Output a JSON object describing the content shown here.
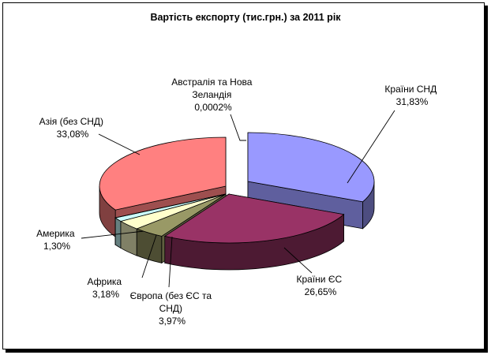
{
  "chart_data": {
    "type": "pie",
    "style": "3d-exploded",
    "title": "Вартість експорту (тис.грн.) за 2011 рік",
    "legend": "none",
    "slices": [
      {
        "label": "Країни СНД",
        "value": 31.83,
        "value_text": "31,83%",
        "color": "#9999ff"
      },
      {
        "label": "Країни ЄС",
        "value": 26.65,
        "value_text": "26,65%",
        "color": "#993366"
      },
      {
        "label": "Європа (без ЄС та СНД)",
        "value": 3.97,
        "value_text": "3,97%",
        "color": "#999966"
      },
      {
        "label": "Африка",
        "value": 3.18,
        "value_text": "3,18%",
        "color": "#ffffcc"
      },
      {
        "label": "Америка",
        "value": 1.3,
        "value_text": "1,30%",
        "color": "#ccffff"
      },
      {
        "label": "Австралія та Нова Зеландія",
        "value": 0.0002,
        "value_text": "0,0002%",
        "color": "#660066"
      },
      {
        "label": "Азія (без СНД)",
        "value": 33.08,
        "value_text": "33,08%",
        "color": "#ff8080"
      }
    ]
  },
  "labels": {
    "sng": [
      "Країни СНД",
      "31,83%"
    ],
    "es": [
      "Країни ЄС",
      "26,65%"
    ],
    "europe": [
      "Європа (без ЄС та",
      "СНД)",
      "3,97%"
    ],
    "africa": [
      "Африка",
      "3,18%"
    ],
    "america": [
      "Америка",
      "1,30%"
    ],
    "australia": [
      "Австралія та Нова",
      "Зеландія",
      "0,0002%"
    ],
    "asia": [
      "Азія (без СНД)",
      "33,08%"
    ]
  }
}
